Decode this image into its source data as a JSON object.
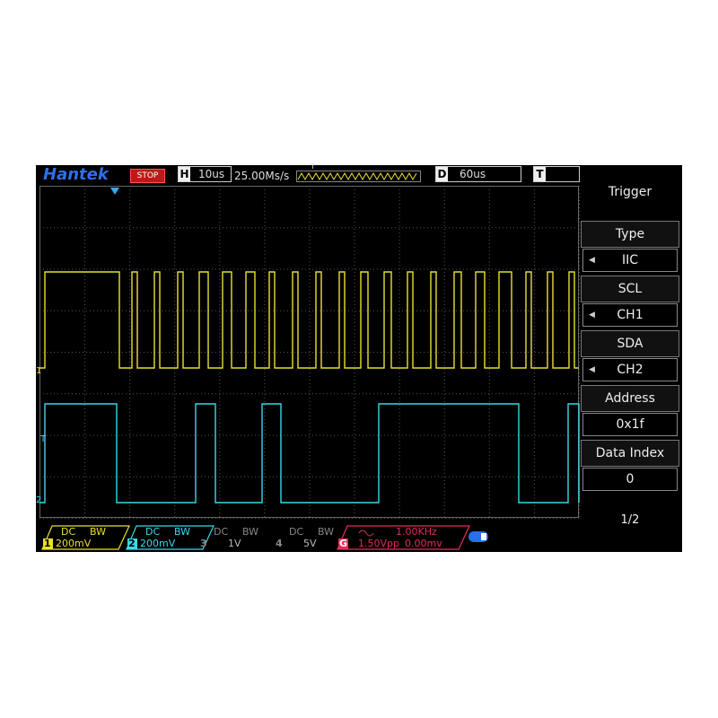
{
  "top_bar": {
    "brand": "Hantek",
    "status": "STOP",
    "horizontal": {
      "label": "H",
      "value": "10us"
    },
    "sample_rate": "25.00Ms/s",
    "trigger_marker": "T",
    "delay": {
      "label": "D",
      "value": "60us"
    },
    "trigger": {
      "label": "T"
    }
  },
  "menu": {
    "title": "Trigger",
    "items": [
      {
        "label": "Type",
        "value": "IIC"
      },
      {
        "label": "SCL",
        "value": "CH1"
      },
      {
        "label": "SDA",
        "value": "CH2"
      },
      {
        "label": "Address",
        "value": "0x1f"
      },
      {
        "label": "Data Index",
        "value": "0"
      }
    ],
    "page": "1/2"
  },
  "channels": [
    {
      "number": "1",
      "coupling": "DC",
      "bandwidth": "BW",
      "scale": "200mV"
    },
    {
      "number": "2",
      "coupling": "DC",
      "bandwidth": "BW",
      "scale": "200mV"
    },
    {
      "number": "3",
      "coupling": "DC",
      "bandwidth": "BW",
      "scale": "1V"
    },
    {
      "number": "4",
      "coupling": "DC",
      "bandwidth": "BW",
      "scale": "5V"
    }
  ],
  "generator": {
    "label": "G",
    "frequency": "1.00KHz",
    "amplitude": "1.50Vpp",
    "offset": "0.00mv"
  },
  "markers": {
    "ch1": "1",
    "trigger": "T",
    "ch2": "2"
  }
}
